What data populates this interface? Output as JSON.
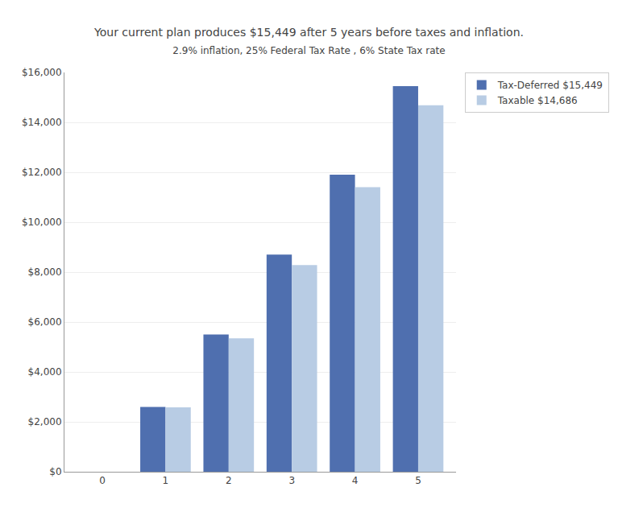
{
  "chart_data": {
    "type": "bar",
    "title": "Your current plan produces $15,449 after 5 years before taxes and inflation.",
    "subtitle": "2.9% inflation, 25% Federal Tax Rate , 6% State Tax rate",
    "x": [
      0,
      1,
      2,
      3,
      4,
      5
    ],
    "series": [
      {
        "name": "Tax-Deferred $15,449",
        "color": "#4f6faf",
        "values": [
          0,
          2600,
          5500,
          8700,
          11900,
          15449
        ]
      },
      {
        "name": "Taxable $14,686",
        "color": "#b8cce4",
        "values": [
          0,
          2580,
          5350,
          8280,
          11400,
          14686
        ]
      }
    ],
    "xlim": [
      -0.6,
      5.6
    ],
    "xticks": [
      0,
      1,
      2,
      3,
      4,
      5
    ],
    "ylim": [
      0,
      16000
    ],
    "yticks": [
      {
        "value": 0,
        "label": "$0"
      },
      {
        "value": 2000,
        "label": "$2,000"
      },
      {
        "value": 4000,
        "label": "$4,000"
      },
      {
        "value": 6000,
        "label": "$6,000"
      },
      {
        "value": 8000,
        "label": "$8,000"
      },
      {
        "value": 10000,
        "label": "$10,000"
      },
      {
        "value": 12000,
        "label": "$12,000"
      },
      {
        "value": 14000,
        "label": "$14,000"
      },
      {
        "value": 16000,
        "label": "$16,000"
      }
    ],
    "grid": true,
    "legend": "right"
  }
}
